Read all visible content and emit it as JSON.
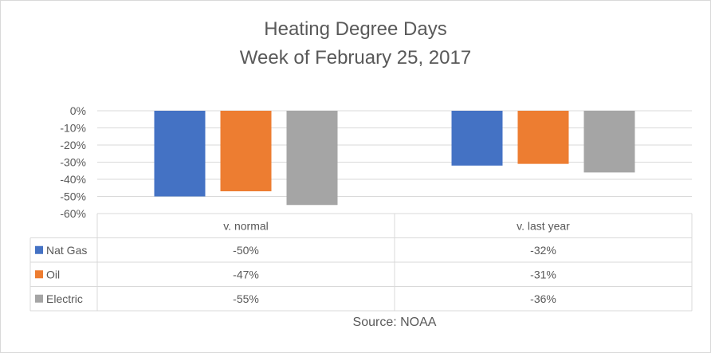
{
  "chart_data": {
    "type": "bar",
    "title": "Heating Degree Days",
    "subtitle": "Week of February 25, 2017",
    "categories": [
      "v. normal",
      "v. last year"
    ],
    "series": [
      {
        "name": "Nat Gas",
        "values": [
          -50,
          -32
        ],
        "labels": [
          "-50%",
          "-32%"
        ],
        "color": "#4472c4"
      },
      {
        "name": "Oil",
        "values": [
          -47,
          -31
        ],
        "labels": [
          "-47%",
          "-31%"
        ],
        "color": "#ed7d31"
      },
      {
        "name": "Electric",
        "values": [
          -55,
          -36
        ],
        "labels": [
          "-55%",
          "-36%"
        ],
        "color": "#a5a5a5"
      }
    ],
    "ylim": [
      -60,
      0
    ],
    "yticks": [
      0,
      -10,
      -20,
      -30,
      -40,
      -50,
      -60
    ],
    "ytick_labels": [
      "0%",
      "-10%",
      "-20%",
      "-30%",
      "-40%",
      "-50%",
      "-60%"
    ],
    "grid": true,
    "legend": "data-table",
    "source": "Source: NOAA"
  }
}
